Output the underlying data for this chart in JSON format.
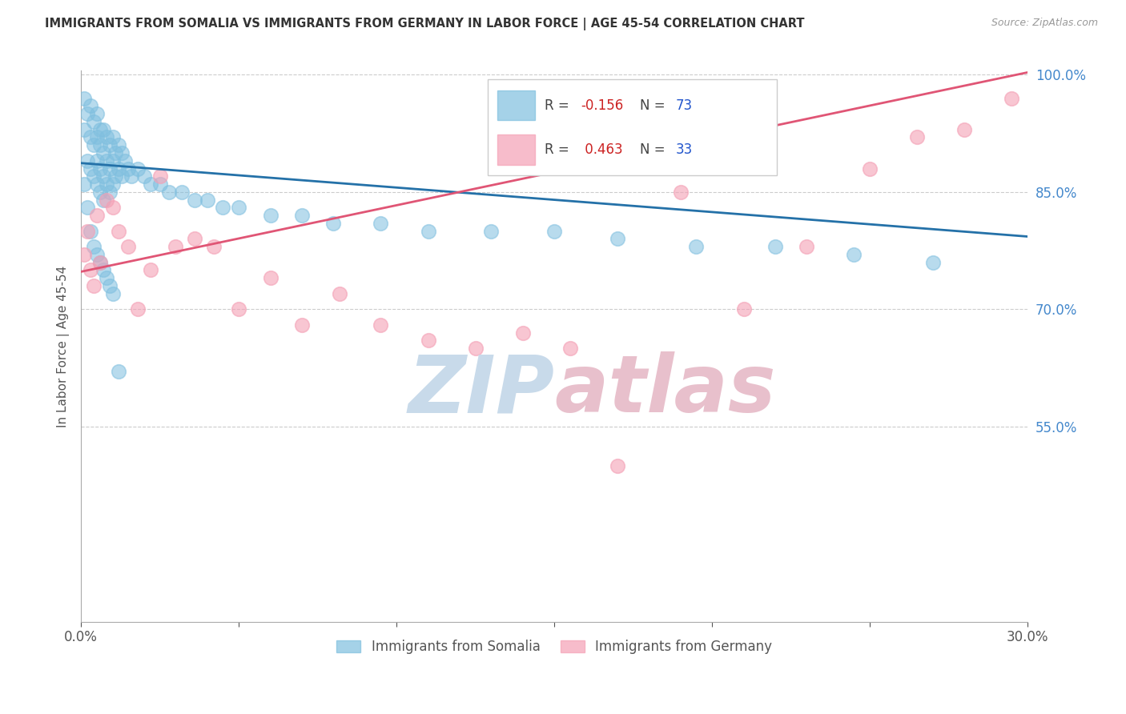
{
  "title": "IMMIGRANTS FROM SOMALIA VS IMMIGRANTS FROM GERMANY IN LABOR FORCE | AGE 45-54 CORRELATION CHART",
  "source": "Source: ZipAtlas.com",
  "ylabel": "In Labor Force | Age 45-54",
  "legend_somalia": "Immigrants from Somalia",
  "legend_germany": "Immigrants from Germany",
  "somalia_R": -0.156,
  "somalia_N": 73,
  "germany_R": 0.463,
  "germany_N": 33,
  "xlim": [
    0.0,
    0.3
  ],
  "ylim": [
    0.3,
    1.005
  ],
  "somalia_color": "#7fbfdf",
  "germany_color": "#f4a0b5",
  "somalia_line_color": "#2471a8",
  "germany_line_color": "#e05575",
  "watermark_zip_color": "#c8daea",
  "watermark_atlas_color": "#e8c0cc",
  "grid_color": "#cccccc",
  "background_color": "#ffffff",
  "somalia_x": [
    0.001,
    0.001,
    0.002,
    0.002,
    0.003,
    0.003,
    0.003,
    0.004,
    0.004,
    0.004,
    0.005,
    0.005,
    0.005,
    0.005,
    0.006,
    0.006,
    0.006,
    0.006,
    0.007,
    0.007,
    0.007,
    0.007,
    0.008,
    0.008,
    0.008,
    0.009,
    0.009,
    0.009,
    0.01,
    0.01,
    0.01,
    0.011,
    0.011,
    0.012,
    0.012,
    0.013,
    0.013,
    0.014,
    0.015,
    0.016,
    0.018,
    0.02,
    0.022,
    0.025,
    0.028,
    0.032,
    0.036,
    0.04,
    0.045,
    0.05,
    0.06,
    0.07,
    0.08,
    0.095,
    0.11,
    0.13,
    0.15,
    0.17,
    0.195,
    0.22,
    0.245,
    0.27,
    0.001,
    0.002,
    0.003,
    0.004,
    0.005,
    0.006,
    0.007,
    0.008,
    0.009,
    0.01,
    0.012
  ],
  "somalia_y": [
    0.97,
    0.93,
    0.95,
    0.89,
    0.96,
    0.92,
    0.88,
    0.94,
    0.91,
    0.87,
    0.95,
    0.92,
    0.89,
    0.86,
    0.93,
    0.91,
    0.88,
    0.85,
    0.93,
    0.9,
    0.87,
    0.84,
    0.92,
    0.89,
    0.86,
    0.91,
    0.88,
    0.85,
    0.92,
    0.89,
    0.86,
    0.9,
    0.87,
    0.91,
    0.88,
    0.9,
    0.87,
    0.89,
    0.88,
    0.87,
    0.88,
    0.87,
    0.86,
    0.86,
    0.85,
    0.85,
    0.84,
    0.84,
    0.83,
    0.83,
    0.82,
    0.82,
    0.81,
    0.81,
    0.8,
    0.8,
    0.8,
    0.79,
    0.78,
    0.78,
    0.77,
    0.76,
    0.86,
    0.83,
    0.8,
    0.78,
    0.77,
    0.76,
    0.75,
    0.74,
    0.73,
    0.72,
    0.62
  ],
  "germany_x": [
    0.001,
    0.002,
    0.003,
    0.004,
    0.005,
    0.006,
    0.008,
    0.01,
    0.012,
    0.015,
    0.018,
    0.022,
    0.025,
    0.03,
    0.036,
    0.042,
    0.05,
    0.06,
    0.07,
    0.082,
    0.095,
    0.11,
    0.125,
    0.14,
    0.155,
    0.17,
    0.19,
    0.21,
    0.23,
    0.25,
    0.265,
    0.28,
    0.295
  ],
  "germany_y": [
    0.77,
    0.8,
    0.75,
    0.73,
    0.82,
    0.76,
    0.84,
    0.83,
    0.8,
    0.78,
    0.7,
    0.75,
    0.87,
    0.78,
    0.79,
    0.78,
    0.7,
    0.74,
    0.68,
    0.72,
    0.68,
    0.66,
    0.65,
    0.67,
    0.65,
    0.5,
    0.85,
    0.7,
    0.78,
    0.88,
    0.92,
    0.93,
    0.97
  ],
  "somalia_line_x0": 0.0,
  "somalia_line_y0": 0.887,
  "somalia_line_x1": 0.3,
  "somalia_line_y1": 0.793,
  "germany_line_x0": 0.0,
  "germany_line_y0": 0.748,
  "germany_line_x1": 0.3,
  "germany_line_y1": 1.003
}
